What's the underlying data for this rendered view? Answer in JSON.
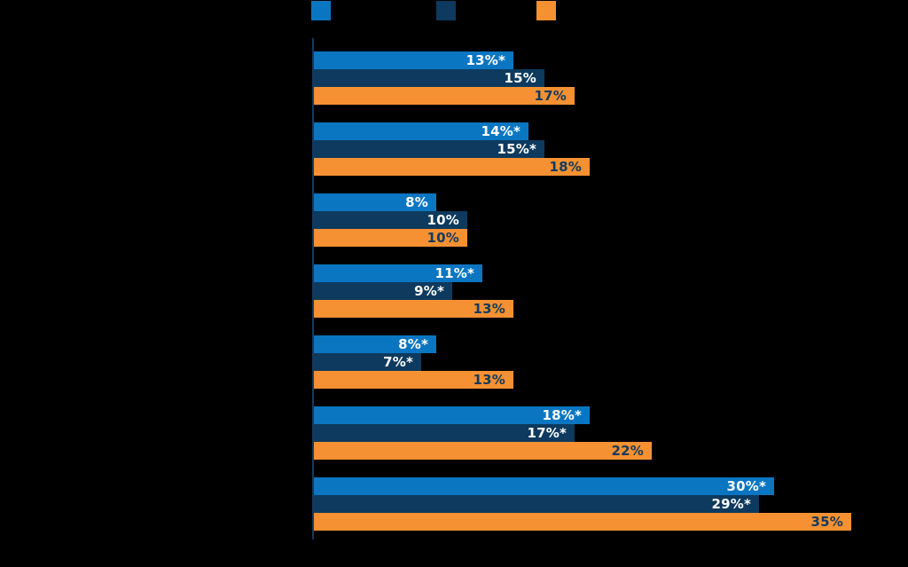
{
  "chart": {
    "background_color": "#000000",
    "axis_color": "#15395c"
  },
  "chart_data": {
    "type": "bar",
    "orientation": "horizontal",
    "grid": false,
    "legend_position": "top",
    "categories": [
      "",
      "",
      "",
      "",
      "",
      "",
      ""
    ],
    "series": [
      {
        "name": "",
        "color": "#0a76c2",
        "label_color": "#ffffff",
        "values": [
          13,
          14,
          8,
          11,
          8,
          18,
          30
        ],
        "data_labels": [
          "13%*",
          "14%*",
          "8%",
          "11%*",
          "8%*",
          "18%*",
          "30%*"
        ]
      },
      {
        "name": "",
        "color": "#0d3a5e",
        "label_color": "#ffffff",
        "values": [
          15,
          15,
          10,
          9,
          7,
          17,
          29
        ],
        "data_labels": [
          "15%",
          "15%*",
          "10%",
          "9%*",
          "7%*",
          "17%*",
          "29%*"
        ]
      },
      {
        "name": "",
        "color": "#f59132",
        "label_color": "#123a5e",
        "values": [
          17,
          18,
          10,
          13,
          13,
          22,
          35
        ],
        "data_labels": [
          "17%",
          "18%",
          "10%",
          "13%",
          "13%",
          "22%",
          "35%"
        ]
      }
    ],
    "xlim": [
      0,
      38.7
    ]
  }
}
